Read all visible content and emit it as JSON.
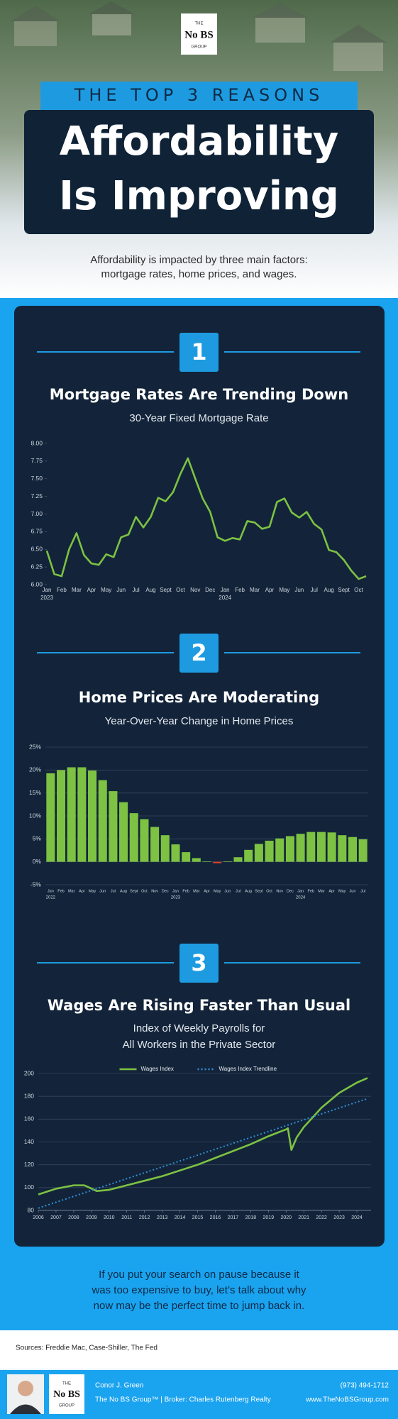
{
  "header": {
    "logo": {
      "top": "THE",
      "name": "No BS",
      "bottom": "GROUP"
    },
    "kicker": "THE TOP 3 REASONS",
    "title_lines": [
      "Affordability",
      "Is Improving"
    ]
  },
  "intro": [
    "Affordability is impacted by three main factors:",
    "mortgage rates, home prices, and wages."
  ],
  "chart_data": [
    {
      "type": "line",
      "number": "1",
      "title": "Mortgage Rates Are Trending Down",
      "subtitle": [
        "30-Year Fixed Mortgage Rate"
      ],
      "categories": [
        "Jan",
        null,
        "Feb",
        null,
        "Mar",
        null,
        "Apr",
        null,
        "May",
        null,
        "Jun",
        null,
        "Jul",
        null,
        "Aug",
        null,
        "Sept",
        null,
        "Oct",
        null,
        "Nov",
        null,
        "Dec",
        null,
        "Jan",
        null,
        "Feb",
        null,
        "Mar",
        null,
        "Apr",
        null,
        "May",
        null,
        "Jun",
        null,
        "Jul",
        null,
        "Aug",
        null,
        "Sept",
        null,
        "Oct",
        null
      ],
      "year_labels": [
        "2023",
        null,
        null,
        null,
        null,
        null,
        null,
        null,
        null,
        null,
        null,
        null,
        null,
        null,
        null,
        null,
        null,
        null,
        null,
        null,
        null,
        null,
        null,
        null,
        "2024",
        null,
        null,
        null,
        null,
        null,
        null,
        null,
        null,
        null,
        null,
        null,
        null,
        null,
        null,
        null,
        null,
        null,
        null,
        null
      ],
      "values": [
        6.48,
        6.15,
        6.12,
        6.5,
        6.73,
        6.42,
        6.3,
        6.28,
        6.43,
        6.39,
        6.67,
        6.71,
        6.96,
        6.81,
        6.96,
        7.23,
        7.18,
        7.31,
        7.57,
        7.79,
        7.5,
        7.22,
        7.03,
        6.67,
        6.62,
        6.66,
        6.64,
        6.9,
        6.88,
        6.79,
        6.82,
        7.17,
        7.22,
        7.02,
        6.95,
        7.03,
        6.86,
        6.78,
        6.49,
        6.46,
        6.35,
        6.2,
        6.08,
        6.12
      ],
      "color": "#7dc242",
      "ylim": [
        6,
        8
      ],
      "yticks": [
        {
          "value": 6,
          "label": "6.00"
        },
        {
          "value": 6.25,
          "label": "6.25"
        },
        {
          "value": 6.5,
          "label": "6.50"
        },
        {
          "value": 6.75,
          "label": "6.75"
        },
        {
          "value": 7,
          "label": "7.00"
        },
        {
          "value": 7.25,
          "label": "7.25"
        },
        {
          "value": 7.5,
          "label": "7.50"
        },
        {
          "value": 7.75,
          "label": "7.75"
        },
        {
          "value": 8,
          "label": "8.00"
        }
      ],
      "grid": false
    },
    {
      "type": "bar",
      "number": "2",
      "title": "Home Prices Are Moderating",
      "subtitle": [
        "Year-Over-Year Change in Home Prices"
      ],
      "categories": [
        "Jan",
        "Feb",
        "Mar",
        "Apr",
        "May",
        "Jun",
        "Jul",
        "Aug",
        "Sept",
        "Oct",
        "Nov",
        "Dec",
        "Jan",
        "Feb",
        "Mar",
        "Apr",
        "May",
        "Jun",
        "Jul",
        "Aug",
        "Sept",
        "Oct",
        "Nov",
        "Dec",
        "Jan",
        "Feb",
        "Mar",
        "Apr",
        "May",
        "Jun",
        "Jul"
      ],
      "year_labels": [
        "2022",
        null,
        null,
        null,
        null,
        null,
        null,
        null,
        null,
        null,
        null,
        null,
        "2023",
        null,
        null,
        null,
        null,
        null,
        null,
        null,
        null,
        null,
        null,
        null,
        "2024",
        null,
        null,
        null,
        null,
        null,
        null
      ],
      "values": [
        19.3,
        20.0,
        20.6,
        20.6,
        19.9,
        17.8,
        15.4,
        13.0,
        10.6,
        9.3,
        7.6,
        5.8,
        3.8,
        2.1,
        0.8,
        0.1,
        -0.3,
        0.1,
        1.0,
        2.6,
        3.9,
        4.6,
        5.1,
        5.6,
        6.1,
        6.5,
        6.5,
        6.4,
        5.8,
        5.4,
        4.9
      ],
      "color": "#7dc242",
      "negative_color": "#e0412b",
      "ylim": [
        -5,
        25
      ],
      "yticks": [
        {
          "value": -5,
          "label": "-5%"
        },
        {
          "value": 0,
          "label": "0%"
        },
        {
          "value": 5,
          "label": "5%"
        },
        {
          "value": 10,
          "label": "10%"
        },
        {
          "value": 15,
          "label": "15%"
        },
        {
          "value": 20,
          "label": "20%"
        },
        {
          "value": 25,
          "label": "25%"
        }
      ],
      "grid": true
    },
    {
      "type": "line",
      "number": "3",
      "title": "Wages Are Rising Faster Than Usual",
      "subtitle": [
        "Index of Weekly Payrolls for",
        "All Workers in the Private Sector"
      ],
      "series": [
        {
          "name": "Wages Index",
          "color": "#7dc242",
          "dash": false,
          "x": [
            2006,
            2007,
            2008,
            2008.6,
            2009.3,
            2010,
            2011,
            2012,
            2013,
            2014,
            2015,
            2016,
            2017,
            2018,
            2019,
            2020,
            2020.1,
            2020.3,
            2020.6,
            2021,
            2022,
            2023,
            2024,
            2024.6
          ],
          "values": [
            94,
            99,
            102,
            102,
            97,
            98,
            102,
            106,
            110,
            115,
            120,
            126,
            132,
            138,
            145,
            151,
            152,
            133,
            144,
            153,
            170,
            183,
            192,
            196
          ]
        },
        {
          "name": "Wages Index Trendline",
          "color": "#2f8fd8",
          "dash": true,
          "x": [
            2006,
            2024.6
          ],
          "values": [
            82,
            178
          ]
        }
      ],
      "xlim": [
        2006,
        2024.8
      ],
      "xticks": [
        2006,
        2007,
        2008,
        2009,
        2010,
        2011,
        2012,
        2013,
        2014,
        2015,
        2016,
        2017,
        2018,
        2019,
        2020,
        2021,
        2022,
        2023,
        2024
      ],
      "ylim": [
        80,
        200
      ],
      "yticks": [
        80,
        100,
        120,
        140,
        160,
        180,
        200
      ],
      "grid": true,
      "legend": "top"
    }
  ],
  "closing": [
    "If you put your search on pause because it",
    "was too expensive to buy, let’s talk about why",
    "now may be the perfect time to jump back in."
  ],
  "sources": "Sources: Freddie Mac, Case-Shiller, The Fed",
  "footer": {
    "logo": {
      "top": "THE",
      "name": "No BS",
      "bottom": "GROUP"
    },
    "name": "Conor J. Green",
    "company": "The No BS Group™ | Broker: Charles Rutenberg Realty",
    "phone": "(973) 494-1712",
    "website": "www.TheNoBSGroup.com"
  }
}
